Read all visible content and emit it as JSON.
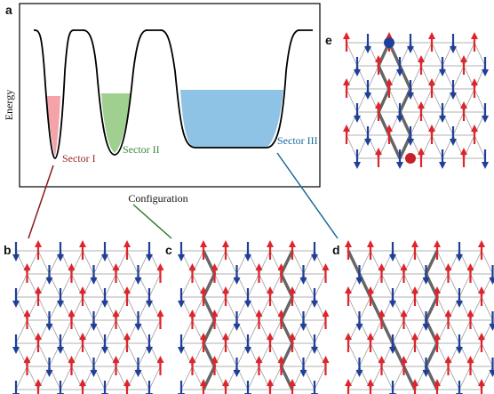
{
  "panels": {
    "a": {
      "label": "a",
      "y_axis": "Energy",
      "x_axis": "Configuration",
      "sectors": [
        "Sector I",
        "Sector II",
        "Sector III"
      ]
    },
    "b": {
      "label": "b"
    },
    "c": {
      "label": "c"
    },
    "d": {
      "label": "d"
    },
    "e": {
      "label": "e"
    }
  }
}
